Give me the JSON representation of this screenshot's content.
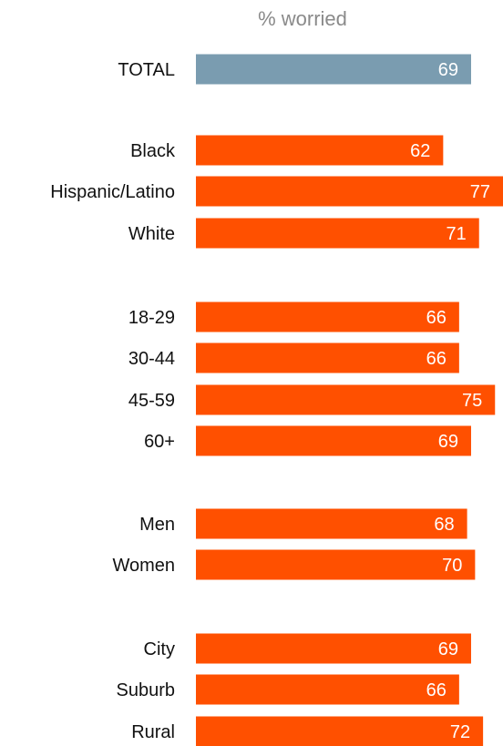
{
  "chart_data": {
    "type": "bar",
    "orientation": "horizontal",
    "subtitle": "% worried",
    "categories": [
      "TOTAL",
      "Black",
      "Hispanic/Latino",
      "White",
      "18-29",
      "30-44",
      "45-59",
      "60+",
      "Men",
      "Women",
      "City",
      "Suburb",
      "Rural"
    ],
    "values": [
      69,
      62,
      77,
      71,
      66,
      66,
      75,
      69,
      68,
      70,
      69,
      66,
      72
    ],
    "groups": [
      [
        "TOTAL"
      ],
      [
        "Black",
        "Hispanic/Latino",
        "White"
      ],
      [
        "18-29",
        "30-44",
        "45-59",
        "60+"
      ],
      [
        "Men",
        "Women"
      ],
      [
        "City",
        "Suburb",
        "Rural"
      ]
    ],
    "xlim": [
      0,
      77
    ],
    "colors": {
      "total": "#7a9cb0",
      "bars": "#ff5000",
      "value_text": "#ffffff",
      "subtitle": "#8a8a8a"
    },
    "grid": false,
    "legend": "none"
  }
}
